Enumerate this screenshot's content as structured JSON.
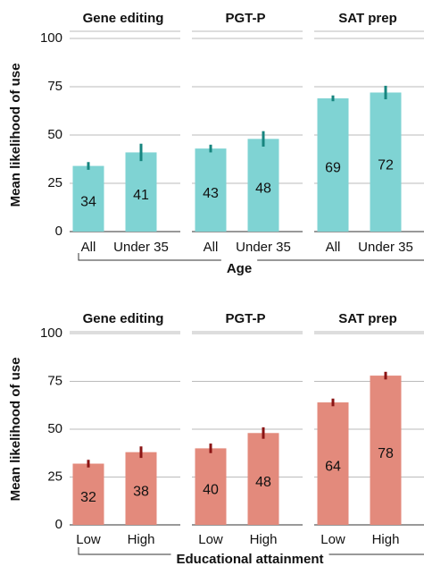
{
  "chart_data": [
    {
      "type": "bar",
      "ylabel": "Mean likelihood of use",
      "xlabel": "Age",
      "ylim": [
        0,
        100
      ],
      "yticks": [
        0,
        25,
        50,
        75,
        100
      ],
      "grid": true,
      "color": "#7fd3d3",
      "error_color": "#17857f",
      "panels": [
        {
          "title": "Gene editing",
          "categories": [
            "All",
            "Under 35"
          ],
          "values": [
            34,
            41
          ],
          "errors": [
            2,
            4.5
          ]
        },
        {
          "title": "PGT-P",
          "categories": [
            "All",
            "Under 35"
          ],
          "values": [
            43,
            48
          ],
          "errors": [
            2,
            4
          ]
        },
        {
          "title": "SAT prep",
          "categories": [
            "All",
            "Under 35"
          ],
          "values": [
            69,
            72
          ],
          "errors": [
            1.5,
            3.5
          ]
        }
      ]
    },
    {
      "type": "bar",
      "ylabel": "Mean likelihood of use",
      "xlabel": "Educational attainment",
      "ylim": [
        0,
        100
      ],
      "yticks": [
        0,
        25,
        50,
        75,
        100
      ],
      "grid": true,
      "color": "#e38a7c",
      "error_color": "#8b1414",
      "panels": [
        {
          "title": "Gene editing",
          "categories": [
            "Low",
            "High"
          ],
          "values": [
            32,
            38
          ],
          "errors": [
            2,
            3
          ]
        },
        {
          "title": "PGT-P",
          "categories": [
            "Low",
            "High"
          ],
          "values": [
            40,
            48
          ],
          "errors": [
            2.5,
            3
          ]
        },
        {
          "title": "SAT prep",
          "categories": [
            "Low",
            "High"
          ],
          "values": [
            64,
            78
          ],
          "errors": [
            2,
            2
          ]
        }
      ]
    }
  ]
}
